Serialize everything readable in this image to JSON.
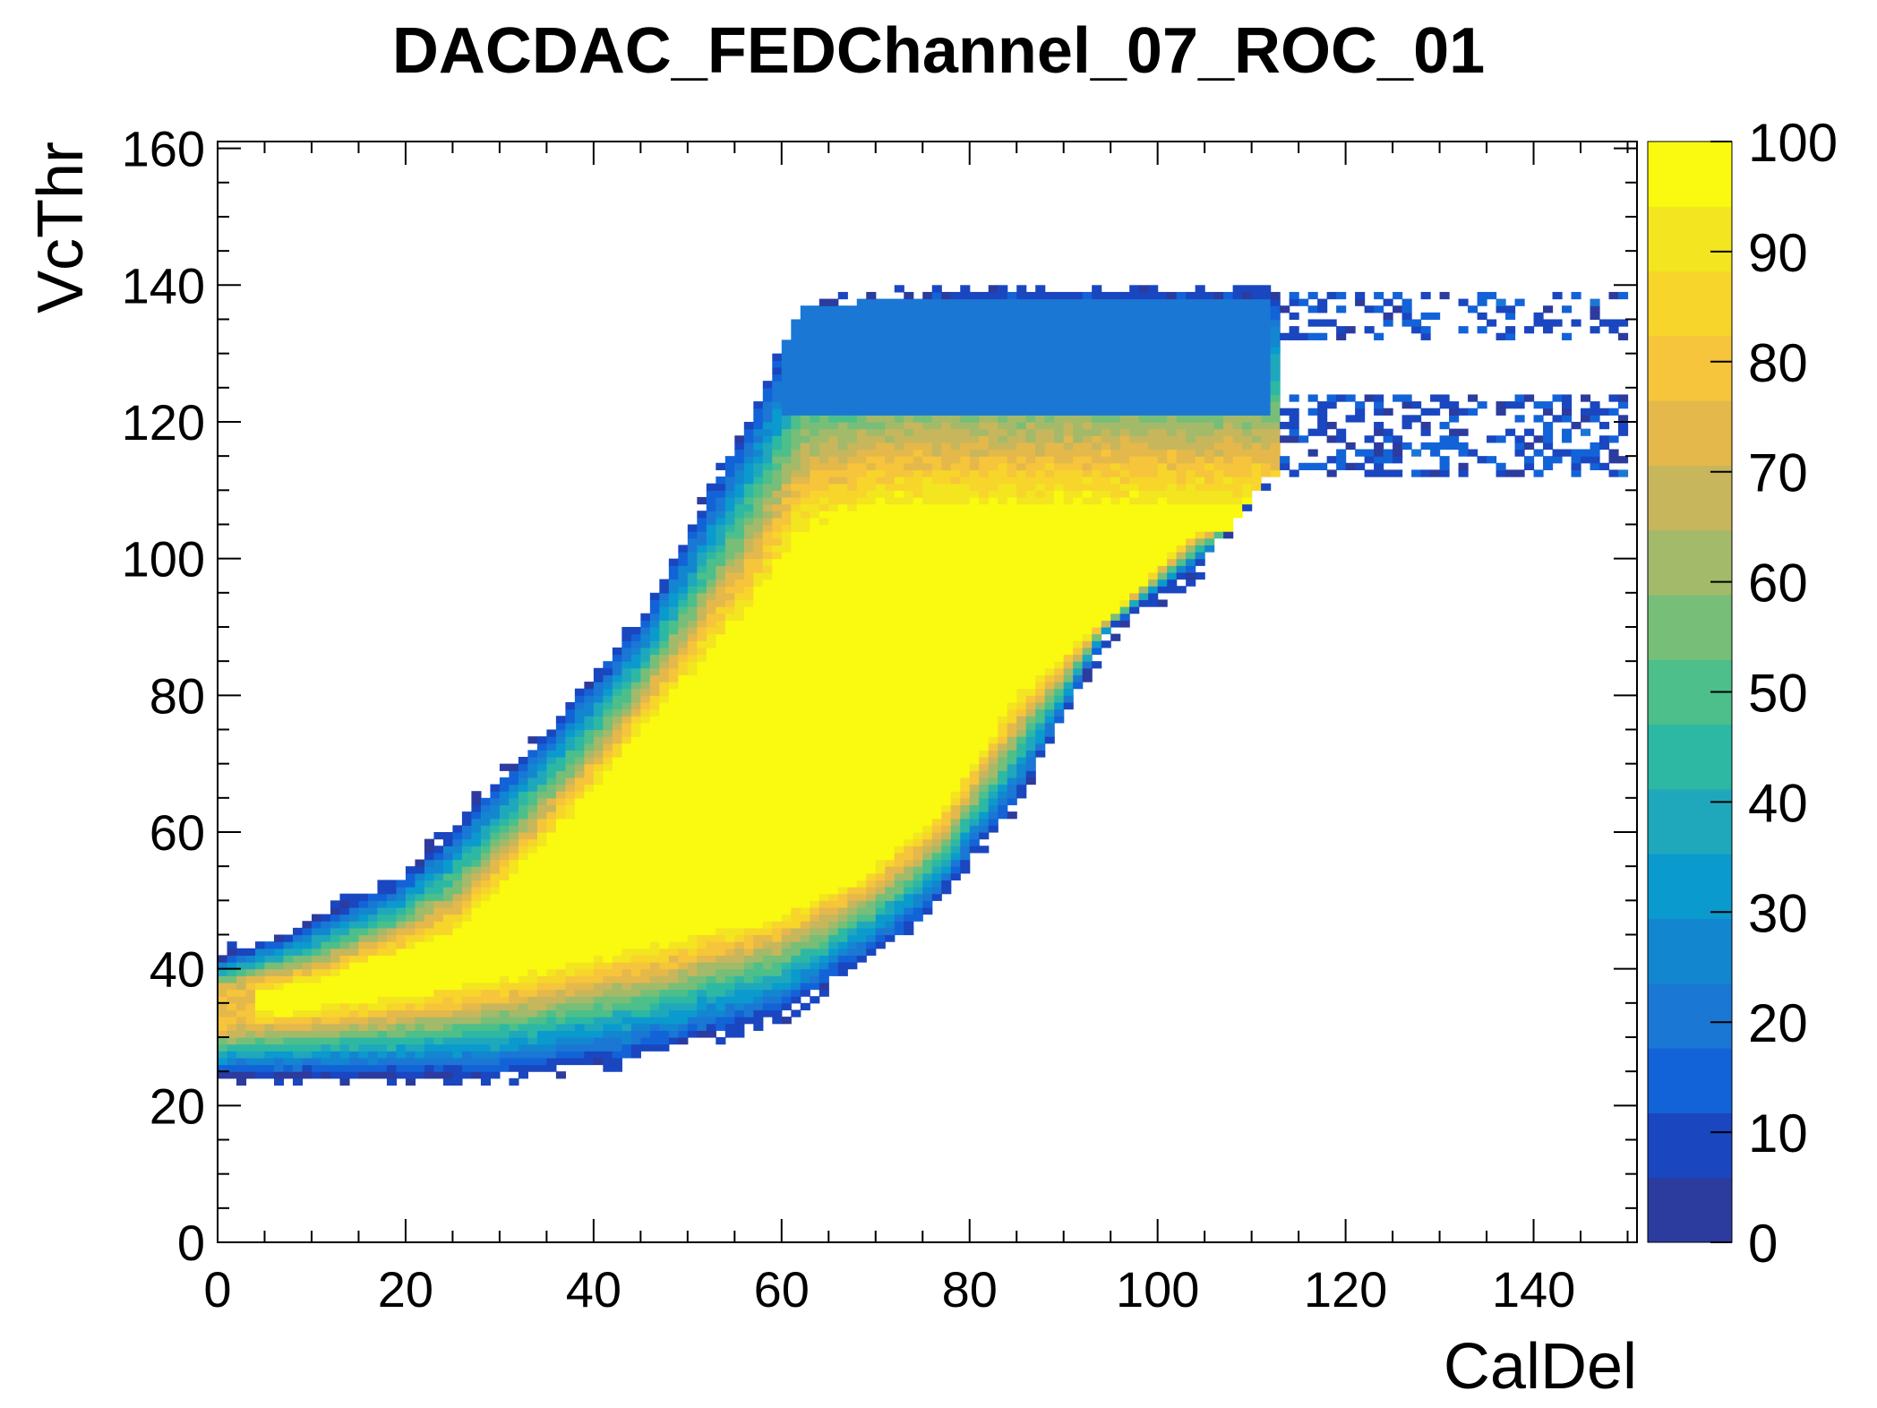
{
  "chart_data": {
    "type": "heatmap",
    "title": "DACDAC_FEDChannel_07_ROC_01",
    "xlabel": "CalDel",
    "ylabel": "VcThr",
    "xlim": [
      0,
      151
    ],
    "ylim": [
      0,
      161
    ],
    "xticks": [
      "0",
      "20",
      "40",
      "60",
      "80",
      "100",
      "120",
      "140"
    ],
    "yticks": [
      "0",
      "20",
      "40",
      "60",
      "80",
      "100",
      "120",
      "140",
      "160"
    ],
    "zlim": [
      0,
      100
    ],
    "zticks": [
      "0",
      "10",
      "20",
      "30",
      "40",
      "50",
      "60",
      "70",
      "80",
      "90",
      "100"
    ],
    "colormap": [
      "#2c3b9e",
      "#1a46c0",
      "#1363d8",
      "#1b77d4",
      "#1386d0",
      "#0a9ace",
      "#1fa8bc",
      "#2db8a4",
      "#4cbf8a",
      "#77be78",
      "#a2ba6a",
      "#c7b65c",
      "#e5b84b",
      "#f6c53b",
      "#f7d52b",
      "#f3e520",
      "#f9fa0f"
    ],
    "grid": false,
    "regions": [
      {
        "label": "efficiency plateau (yellow, ~100)",
        "boundary_caldel_vcthr": [
          [
            0,
            36
          ],
          [
            10,
            38
          ],
          [
            25,
            45
          ],
          [
            38,
            63
          ],
          [
            47,
            78
          ],
          [
            56,
            92
          ],
          [
            62,
            104
          ],
          [
            70,
            108
          ],
          [
            100,
            108
          ],
          [
            104,
            104
          ],
          [
            96,
            93
          ],
          [
            85,
            80
          ],
          [
            77,
            63
          ],
          [
            69,
            54
          ],
          [
            60,
            48
          ],
          [
            48,
            44
          ],
          [
            35,
            40
          ],
          [
            20,
            36
          ],
          [
            8,
            34
          ],
          [
            0,
            33
          ]
        ]
      },
      {
        "label": "upper band (blue, ~20)",
        "caldel": [
          60,
          112
        ],
        "vcthr": [
          122,
          137
        ]
      },
      {
        "label": "scattered low-efficiency bins",
        "caldel": [
          110,
          150
        ],
        "vcthr": [
          112,
          139
        ]
      }
    ]
  }
}
